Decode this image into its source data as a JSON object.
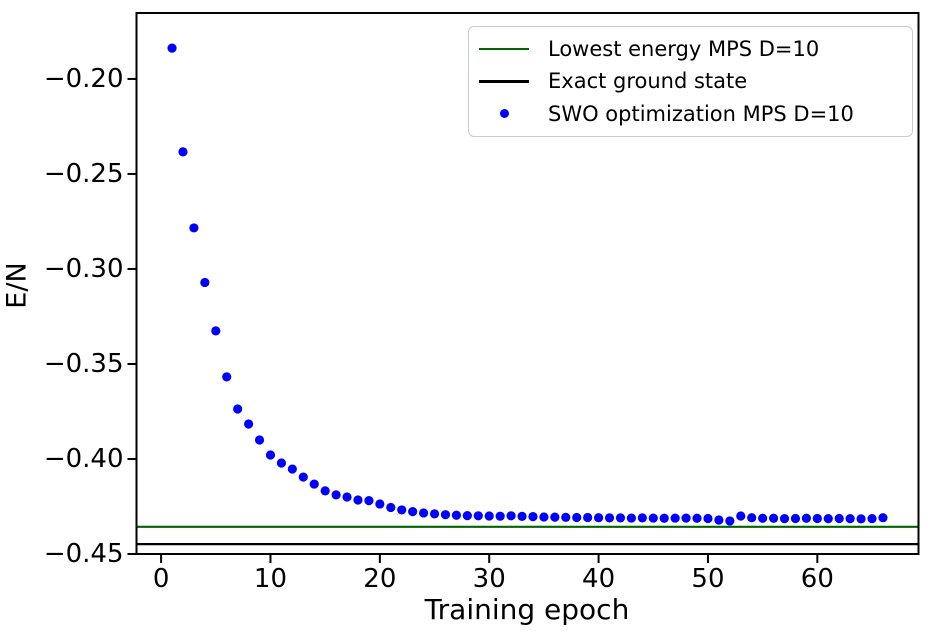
{
  "figure": {
    "background": "#ffffff",
    "xlabel": "Training epoch",
    "ylabel": "E/N"
  },
  "legend": {
    "position": "upper right",
    "items": [
      {
        "label": "Lowest energy MPS D=10",
        "marker": "line",
        "color": "#006400"
      },
      {
        "label": "Exact ground state",
        "marker": "line",
        "color": "#000000"
      },
      {
        "label": "SWO optimization MPS D=10",
        "marker": "dot",
        "color": "#0000ff"
      }
    ]
  },
  "chart_data": {
    "type": "scatter",
    "title": "",
    "xlabel": "Training epoch",
    "ylabel": "E/N",
    "xlim": [
      -2.25,
      69.25
    ],
    "ylim": [
      -0.45,
      -0.1653
    ],
    "grid": false,
    "legend_position": "upper right",
    "x_ticks": [
      0,
      10,
      20,
      30,
      40,
      50,
      60
    ],
    "x_tick_labels": [
      "0",
      "10",
      "20",
      "30",
      "40",
      "50",
      "60"
    ],
    "y_ticks": [
      -0.2,
      -0.25,
      -0.3,
      -0.35,
      -0.4,
      -0.45
    ],
    "y_tick_labels": [
      "−0.20",
      "−0.25",
      "−0.30",
      "−0.35",
      "−0.40",
      "−0.45"
    ],
    "hlines": [
      {
        "name": "Lowest energy MPS D=10",
        "y": -0.4357,
        "color": "#006400",
        "width": 2.2
      },
      {
        "name": "Exact ground state",
        "y": -0.4448,
        "color": "#000000",
        "width": 2.2
      }
    ],
    "series": [
      {
        "name": "SWO optimization MPS D=10",
        "type": "scatter",
        "color": "#0000ff",
        "marker_radius": 4.6,
        "x": [
          1,
          2,
          3,
          4,
          5,
          6,
          7,
          8,
          9,
          10,
          11,
          12,
          13,
          14,
          15,
          16,
          17,
          18,
          19,
          20,
          21,
          22,
          23,
          24,
          25,
          26,
          27,
          28,
          29,
          30,
          31,
          32,
          33,
          34,
          35,
          36,
          37,
          38,
          39,
          40,
          41,
          42,
          43,
          44,
          45,
          46,
          47,
          48,
          49,
          50,
          51,
          52,
          53,
          54,
          55,
          56,
          57,
          58,
          59,
          60,
          61,
          62,
          63,
          64,
          65,
          66
        ],
        "y": [
          -0.1838,
          -0.2384,
          -0.2784,
          -0.3071,
          -0.3326,
          -0.3568,
          -0.3737,
          -0.3816,
          -0.39,
          -0.3979,
          -0.4021,
          -0.4053,
          -0.4095,
          -0.4132,
          -0.4168,
          -0.4189,
          -0.42,
          -0.4216,
          -0.4219,
          -0.4237,
          -0.4255,
          -0.4268,
          -0.4277,
          -0.4284,
          -0.4289,
          -0.4293,
          -0.4296,
          -0.4298,
          -0.4299,
          -0.43,
          -0.4301,
          -0.4299,
          -0.4302,
          -0.4303,
          -0.4305,
          -0.4306,
          -0.4307,
          -0.4308,
          -0.4308,
          -0.4309,
          -0.431,
          -0.431,
          -0.4311,
          -0.431,
          -0.4311,
          -0.4312,
          -0.4311,
          -0.4311,
          -0.4312,
          -0.4313,
          -0.4321,
          -0.4326,
          -0.43,
          -0.4309,
          -0.4312,
          -0.4312,
          -0.4314,
          -0.4313,
          -0.4312,
          -0.4313,
          -0.4314,
          -0.4313,
          -0.4314,
          -0.4315,
          -0.4314,
          -0.4309
        ]
      }
    ]
  }
}
